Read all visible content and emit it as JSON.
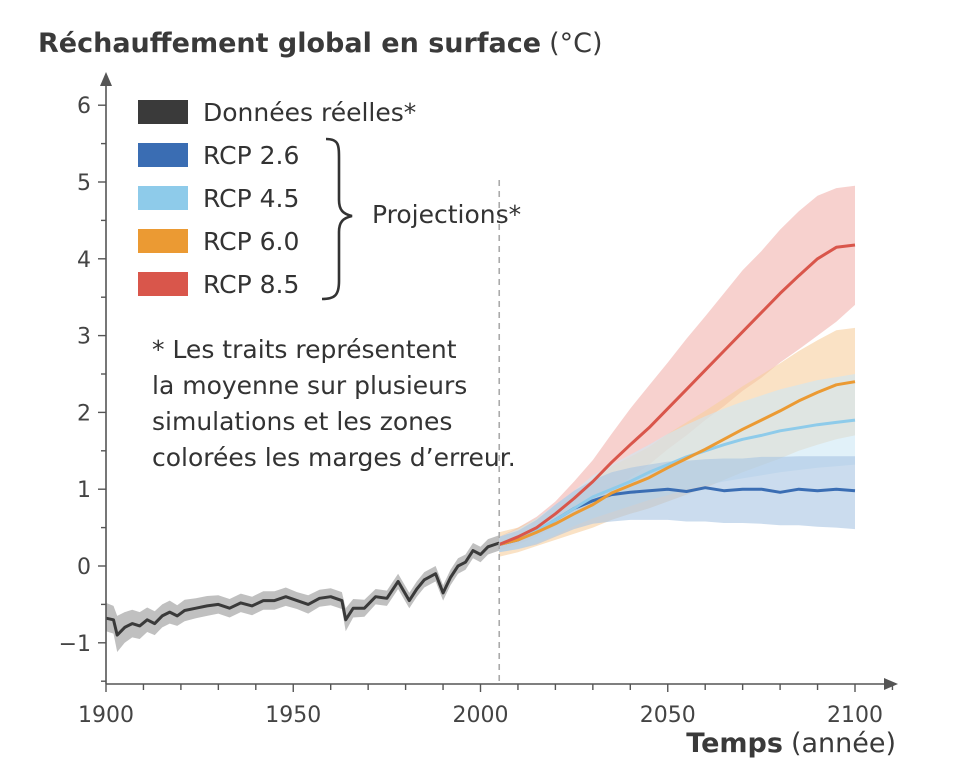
{
  "chart_data": {
    "type": "line",
    "title_bold": "Réchauffement global en surface",
    "title_unit": "(°C)",
    "xlabel_bold": "Temps",
    "xlabel_unit": "(année)",
    "xlim": [
      1900,
      2112
    ],
    "ylim": [
      -1.6,
      6.4
    ],
    "x_ticks": [
      1900,
      1950,
      2000,
      2050,
      2100
    ],
    "y_ticks": [
      -1,
      0,
      1,
      2,
      3,
      4,
      5,
      6
    ],
    "y_tick_labels": [
      "−1",
      "0",
      "1",
      "2",
      "3",
      "4",
      "5",
      "6"
    ],
    "divider_year": 2005,
    "legend": {
      "items": [
        {
          "key": "obs",
          "label": "Données réelles*"
        },
        {
          "key": "rcp26",
          "label": "RCP 2.6"
        },
        {
          "key": "rcp45",
          "label": "RCP 4.5"
        },
        {
          "key": "rcp60",
          "label": "RCP 6.0"
        },
        {
          "key": "rcp85",
          "label": "RCP 8.5"
        }
      ],
      "group_label": "Projections*"
    },
    "note_lines": [
      "* Les traits représentent",
      "la moyenne sur plusieurs",
      "simulations et les zones",
      "colorées les marges d’erreur."
    ],
    "series": [
      {
        "key": "obs",
        "name": "Données réelles",
        "color": "#3a3a3a",
        "band_color": "#bdbdbd",
        "x": [
          1900,
          1902,
          1903,
          1905,
          1907,
          1909,
          1911,
          1913,
          1915,
          1917,
          1919,
          1921,
          1924,
          1927,
          1930,
          1933,
          1936,
          1939,
          1942,
          1945,
          1948,
          1951,
          1954,
          1957,
          1960,
          1963,
          1964,
          1966,
          1969,
          1972,
          1975,
          1978,
          1981,
          1983,
          1985,
          1988,
          1990,
          1992,
          1994,
          1996,
          1998,
          2000,
          2002,
          2005
        ],
        "y": [
          -0.68,
          -0.7,
          -0.9,
          -0.8,
          -0.75,
          -0.78,
          -0.7,
          -0.75,
          -0.65,
          -0.6,
          -0.65,
          -0.58,
          -0.55,
          -0.52,
          -0.5,
          -0.55,
          -0.48,
          -0.52,
          -0.45,
          -0.45,
          -0.4,
          -0.45,
          -0.5,
          -0.42,
          -0.4,
          -0.45,
          -0.7,
          -0.55,
          -0.55,
          -0.4,
          -0.42,
          -0.2,
          -0.45,
          -0.3,
          -0.18,
          -0.1,
          -0.35,
          -0.15,
          0.0,
          0.05,
          0.2,
          0.15,
          0.25,
          0.3
        ],
        "lower": [
          -0.85,
          -0.88,
          -1.12,
          -1.0,
          -0.93,
          -0.95,
          -0.86,
          -0.9,
          -0.8,
          -0.75,
          -0.78,
          -0.72,
          -0.68,
          -0.65,
          -0.62,
          -0.67,
          -0.6,
          -0.64,
          -0.57,
          -0.57,
          -0.52,
          -0.56,
          -0.62,
          -0.53,
          -0.51,
          -0.56,
          -0.85,
          -0.67,
          -0.66,
          -0.5,
          -0.52,
          -0.3,
          -0.55,
          -0.4,
          -0.28,
          -0.2,
          -0.45,
          -0.25,
          -0.1,
          -0.05,
          0.1,
          0.05,
          0.15,
          0.2
        ],
        "upper": [
          -0.48,
          -0.52,
          -0.65,
          -0.6,
          -0.57,
          -0.6,
          -0.54,
          -0.59,
          -0.5,
          -0.45,
          -0.51,
          -0.44,
          -0.42,
          -0.39,
          -0.38,
          -0.43,
          -0.36,
          -0.4,
          -0.33,
          -0.33,
          -0.28,
          -0.34,
          -0.38,
          -0.31,
          -0.29,
          -0.34,
          -0.55,
          -0.43,
          -0.44,
          -0.3,
          -0.32,
          -0.1,
          -0.35,
          -0.2,
          -0.08,
          0.0,
          -0.25,
          -0.05,
          0.1,
          0.15,
          0.3,
          0.25,
          0.35,
          0.4
        ]
      },
      {
        "key": "rcp26",
        "name": "RCP 2.6",
        "color": "#3a6db3",
        "band_color": "#a8c4e2",
        "x": [
          2005,
          2010,
          2015,
          2020,
          2025,
          2030,
          2035,
          2040,
          2045,
          2050,
          2055,
          2060,
          2065,
          2070,
          2075,
          2080,
          2085,
          2090,
          2095,
          2100
        ],
        "y": [
          0.28,
          0.34,
          0.45,
          0.6,
          0.75,
          0.85,
          0.93,
          0.96,
          0.98,
          1.0,
          0.97,
          1.02,
          0.98,
          1.0,
          1.0,
          0.96,
          1.0,
          0.98,
          1.0,
          0.98
        ],
        "lower": [
          0.18,
          0.22,
          0.28,
          0.38,
          0.48,
          0.55,
          0.58,
          0.6,
          0.6,
          0.6,
          0.58,
          0.58,
          0.56,
          0.56,
          0.55,
          0.53,
          0.53,
          0.51,
          0.5,
          0.48
        ],
        "upper": [
          0.38,
          0.46,
          0.6,
          0.8,
          0.98,
          1.12,
          1.22,
          1.28,
          1.32,
          1.36,
          1.37,
          1.39,
          1.4,
          1.4,
          1.42,
          1.42,
          1.43,
          1.43,
          1.43,
          1.43
        ]
      },
      {
        "key": "rcp45",
        "name": "RCP 4.5",
        "color": "#8ecbea",
        "band_color": "#cde7f5",
        "x": [
          2005,
          2010,
          2015,
          2020,
          2025,
          2030,
          2035,
          2040,
          2045,
          2050,
          2055,
          2060,
          2065,
          2070,
          2075,
          2080,
          2085,
          2090,
          2095,
          2100
        ],
        "y": [
          0.28,
          0.35,
          0.46,
          0.6,
          0.75,
          0.9,
          1.0,
          1.1,
          1.22,
          1.32,
          1.42,
          1.5,
          1.58,
          1.65,
          1.7,
          1.76,
          1.8,
          1.84,
          1.87,
          1.9
        ],
        "lower": [
          0.18,
          0.22,
          0.3,
          0.4,
          0.52,
          0.62,
          0.7,
          0.78,
          0.86,
          0.92,
          1.0,
          1.05,
          1.1,
          1.14,
          1.18,
          1.22,
          1.25,
          1.28,
          1.3,
          1.32
        ],
        "upper": [
          0.38,
          0.48,
          0.62,
          0.8,
          0.98,
          1.18,
          1.32,
          1.45,
          1.58,
          1.72,
          1.84,
          1.95,
          2.05,
          2.14,
          2.22,
          2.3,
          2.36,
          2.42,
          2.46,
          2.5
        ]
      },
      {
        "key": "rcp60",
        "name": "RCP 6.0",
        "color": "#eb9a33",
        "band_color": "#f6cf9e",
        "x": [
          2005,
          2010,
          2015,
          2020,
          2025,
          2030,
          2035,
          2040,
          2045,
          2050,
          2055,
          2060,
          2065,
          2070,
          2075,
          2080,
          2085,
          2090,
          2095,
          2100
        ],
        "y": [
          0.28,
          0.34,
          0.44,
          0.55,
          0.68,
          0.8,
          0.95,
          1.05,
          1.15,
          1.28,
          1.4,
          1.52,
          1.65,
          1.78,
          1.9,
          2.02,
          2.15,
          2.26,
          2.36,
          2.4
        ],
        "lower": [
          0.12,
          0.18,
          0.26,
          0.34,
          0.42,
          0.5,
          0.6,
          0.68,
          0.75,
          0.84,
          0.93,
          1.02,
          1.12,
          1.22,
          1.31,
          1.4,
          1.5,
          1.58,
          1.65,
          1.7
        ],
        "upper": [
          0.44,
          0.5,
          0.62,
          0.76,
          0.94,
          1.1,
          1.3,
          1.42,
          1.55,
          1.72,
          1.87,
          2.02,
          2.18,
          2.34,
          2.49,
          2.64,
          2.8,
          2.94,
          3.07,
          3.1
        ]
      },
      {
        "key": "rcp85",
        "name": "RCP 8.5",
        "color": "#d9564b",
        "band_color": "#f2b3ae",
        "x": [
          2005,
          2010,
          2015,
          2020,
          2025,
          2030,
          2035,
          2040,
          2045,
          2050,
          2055,
          2060,
          2065,
          2070,
          2075,
          2080,
          2085,
          2090,
          2095,
          2100
        ],
        "y": [
          0.28,
          0.38,
          0.5,
          0.68,
          0.88,
          1.1,
          1.35,
          1.58,
          1.8,
          2.05,
          2.3,
          2.55,
          2.8,
          3.05,
          3.3,
          3.55,
          3.78,
          4.0,
          4.15,
          4.18
        ],
        "lower": [
          0.2,
          0.28,
          0.38,
          0.52,
          0.66,
          0.82,
          0.98,
          1.15,
          1.32,
          1.52,
          1.7,
          1.9,
          2.08,
          2.28,
          2.45,
          2.65,
          2.82,
          3.0,
          3.18,
          3.4
        ],
        "upper": [
          0.38,
          0.5,
          0.64,
          0.84,
          1.1,
          1.38,
          1.72,
          2.05,
          2.35,
          2.65,
          2.96,
          3.25,
          3.55,
          3.85,
          4.1,
          4.38,
          4.62,
          4.82,
          4.92,
          4.95
        ]
      }
    ]
  }
}
